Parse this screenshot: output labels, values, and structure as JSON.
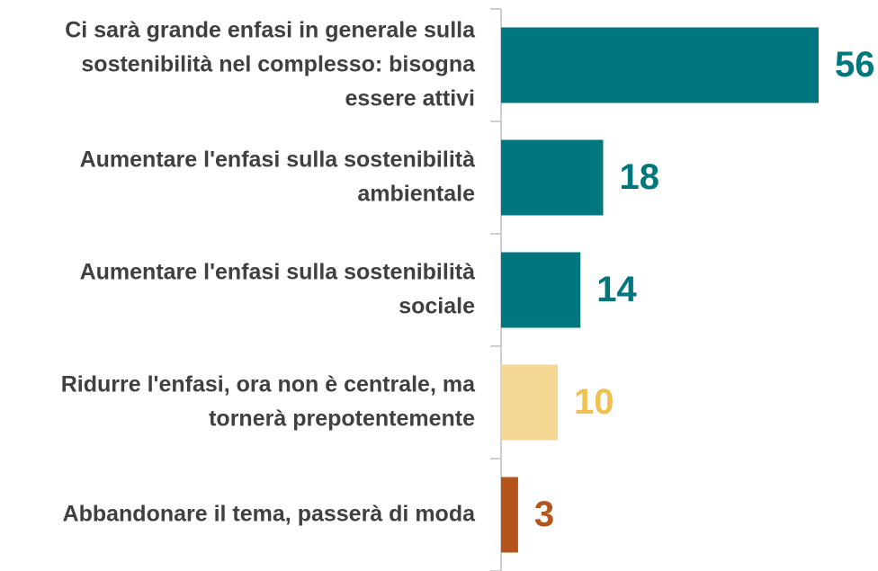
{
  "chart_data": {
    "type": "barh",
    "categories": [
      "Ci sarà grande enfasi in generale sulla\nsostenibilità nel complesso: bisogna\nessere attivi",
      "Aumentare l'enfasi sulla sostenibilità\nambientale",
      "Aumentare l'enfasi sulla sostenibilità\nsociale",
      "Ridurre l'enfasi, ora non è centrale, ma\ntornerà prepotentemente",
      "Abbandonare il tema, passerà di moda"
    ],
    "values": [
      56,
      18,
      14,
      10,
      3
    ],
    "colors": [
      "#00767e",
      "#00767e",
      "#00767e",
      "#f5d794",
      "#b5541a"
    ],
    "value_label_colors": [
      "#00767e",
      "#00767e",
      "#00767e",
      "#f0c050",
      "#b5541a"
    ],
    "xlim": [
      0,
      66
    ],
    "grid": false
  }
}
